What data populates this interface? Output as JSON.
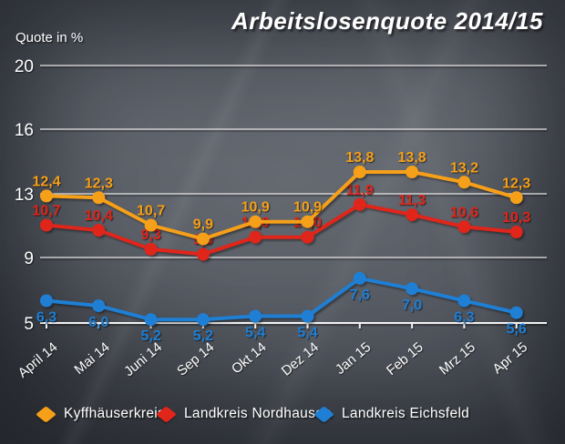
{
  "header": {
    "title": "Arbeitslosenquote 2014/15",
    "y_axis_label": "Quote in %"
  },
  "chart_data": {
    "type": "line",
    "title": "Arbeitslosenquote 2014/15",
    "ylabel": "Quote in %",
    "categories": [
      "April 14",
      "Mai 14",
      "Juni 14",
      "Sep 14",
      "Okt 14",
      "Dez 14",
      "Jan 15",
      "Feb 15",
      "Mrz 15",
      "Apr 15"
    ],
    "series": [
      {
        "name": "Kyffhäuserkreis",
        "color": "#F6A019",
        "values": [
          12.4,
          12.3,
          10.7,
          9.9,
          10.9,
          10.9,
          13.8,
          13.8,
          13.2,
          12.3
        ],
        "label_position": "above"
      },
      {
        "name": "Landkreis Nordhausen",
        "color": "#E0251A",
        "values": [
          10.7,
          10.4,
          9.3,
          9.0,
          10.0,
          10.0,
          11.9,
          11.3,
          10.6,
          10.3
        ],
        "label_position": "above"
      },
      {
        "name": "Landkreis Eichsfeld",
        "color": "#1F7FD4",
        "values": [
          6.3,
          6.0,
          5.2,
          5.2,
          5.4,
          5.4,
          7.6,
          7.0,
          6.3,
          5.6
        ],
        "label_position": "below"
      }
    ],
    "y_ticks": [
      20,
      16,
      13,
      9,
      5
    ],
    "ylim": [
      5,
      20
    ],
    "grid": true,
    "legend_position": "bottom",
    "number_format": {
      "decimal_separator": ","
    },
    "colors": {
      "background": "#565b63",
      "grid": "#E4E4E4",
      "text": "#FFFFFF"
    }
  }
}
